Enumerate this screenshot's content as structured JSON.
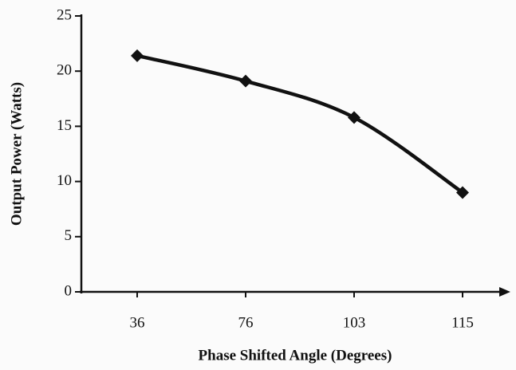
{
  "chart_data": {
    "type": "line",
    "x_label": "Phase Shifted Angle (Degrees)",
    "y_label": "Output Power (Watts)",
    "categories": [
      "36",
      "76",
      "103",
      "115"
    ],
    "values": [
      21.4,
      19.1,
      15.8,
      9.0
    ],
    "color": "#111111",
    "smooth": true,
    "marker": "diamond",
    "ylim": [
      0,
      25
    ],
    "yticks": [
      0,
      5,
      10,
      15,
      20,
      25
    ],
    "grid": false
  }
}
